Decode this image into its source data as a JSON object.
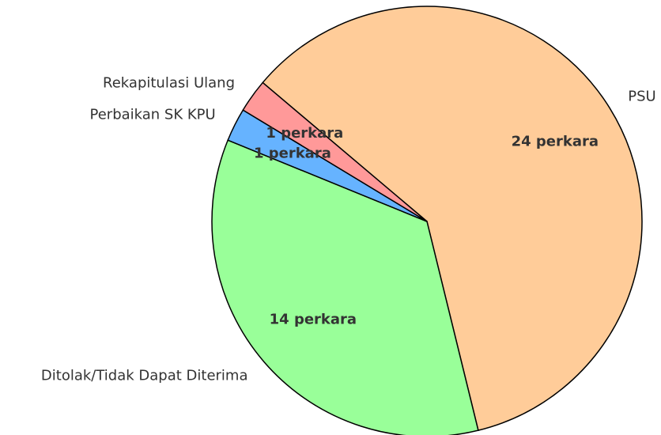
{
  "chart_data": {
    "type": "pie",
    "categories": [
      "PSU",
      "Ditolak/Tidak Dapat Diterima",
      "Perbaikan SK KPU",
      "Rekapitulasi Ulang"
    ],
    "values": [
      24,
      14,
      1,
      1
    ],
    "value_labels": [
      "24 perkara",
      "14 perkara",
      "1 perkara",
      "1 perkara"
    ],
    "colors": [
      "#ffcc99",
      "#99ff99",
      "#66b3ff",
      "#ff9999"
    ]
  }
}
